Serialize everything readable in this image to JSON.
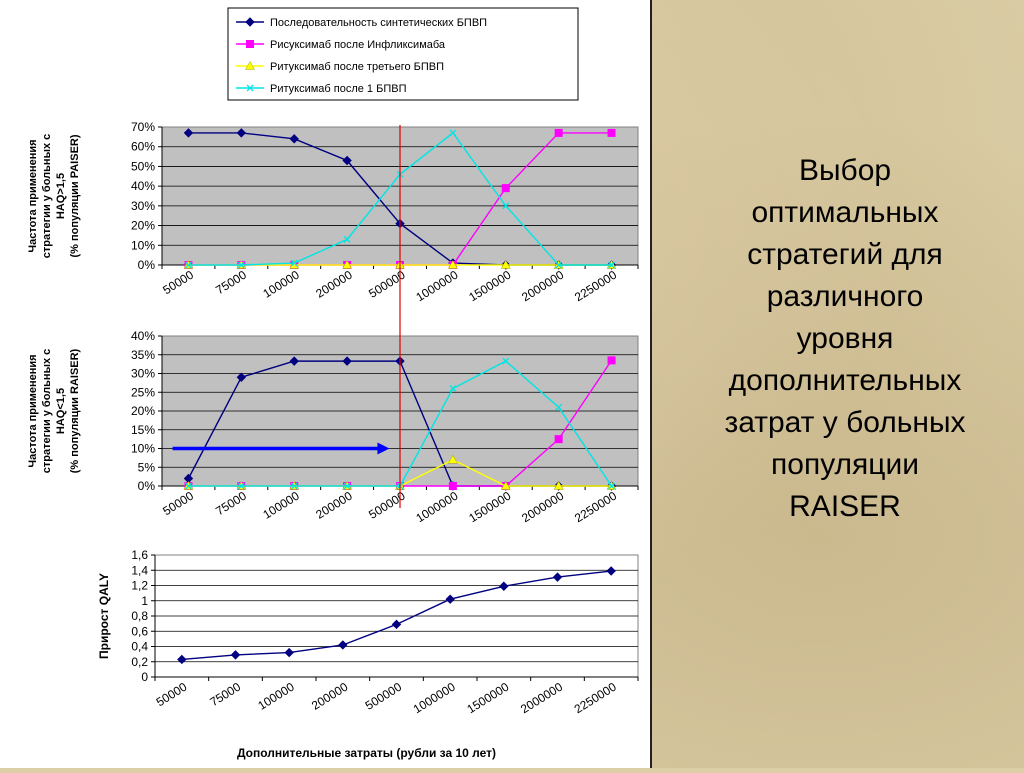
{
  "slide": {
    "title_lines": [
      "Выбор",
      "оптимальных",
      "стратегий для",
      "различного",
      "уровня",
      "дополнительных",
      "затрат у больных",
      "популяции",
      "RAISER"
    ]
  },
  "legend": [
    {
      "label": "Последовательность синтетических БПВП",
      "color": "#000080",
      "marker": "diamond"
    },
    {
      "label": "Рисуксимаб после Инфликсимаба",
      "color": "#ff00ff",
      "marker": "square"
    },
    {
      "label": "Ритуксимаб после третьего БПВП",
      "color": "#ffff00",
      "marker": "triangle"
    },
    {
      "label": "Ритуксимаб после 1 БПВП",
      "color": "#00e5e5",
      "marker": "x"
    }
  ],
  "chart_data": [
    {
      "type": "line",
      "categories": [
        "50000",
        "75000",
        "100000",
        "200000",
        "500000",
        "1000000",
        "1500000",
        "2000000",
        "2250000"
      ],
      "ylabel_lines": [
        "Частота применения",
        "стратегии  у больных с",
        "HAQ>1,5",
        "(% популяции PAISER)"
      ],
      "ylim": [
        0,
        70
      ],
      "yticks": [
        "0%",
        "10%",
        "20%",
        "30%",
        "40%",
        "50%",
        "60%",
        "70%"
      ],
      "grid": true,
      "background": "#c0c0c0",
      "threshold_x_index": 4.0,
      "series": [
        {
          "name": "Последовательность синтетических БПВП",
          "color": "#000080",
          "marker": "diamond",
          "values": [
            67,
            67,
            64,
            53,
            21,
            1,
            0,
            0,
            0
          ]
        },
        {
          "name": "Рисуксимаб после Инфликсимаба",
          "color": "#ff00ff",
          "marker": "square",
          "values": [
            0,
            0,
            0,
            0,
            0,
            0,
            39,
            67,
            67
          ]
        },
        {
          "name": "Ритуксимаб после третьего БПВП",
          "color": "#ffff00",
          "marker": "triangle",
          "values": [
            0,
            0,
            0,
            0,
            0,
            0,
            0,
            0,
            0
          ]
        },
        {
          "name": "Ритуксимаб после 1 БПВП",
          "color": "#00e5e5",
          "marker": "x",
          "values": [
            0,
            0,
            1,
            13,
            46,
            67,
            30,
            0,
            0
          ]
        }
      ]
    },
    {
      "type": "line",
      "categories": [
        "50000",
        "75000",
        "100000",
        "200000",
        "500000",
        "1000000",
        "1500000",
        "2000000",
        "2250000"
      ],
      "ylabel_lines": [
        "Частота применения",
        "стратегии  у больных с",
        "HAQ<1,5",
        "(% популяции RAISER)"
      ],
      "ylim": [
        0,
        40
      ],
      "yticks": [
        "0%",
        "5%",
        "10%",
        "15%",
        "20%",
        "25%",
        "30%",
        "35%",
        "40%"
      ],
      "grid": true,
      "background": "#c0c0c0",
      "threshold_x_index": 4.0,
      "arrow": {
        "from_index": -0.3,
        "to_index": 3.8,
        "value": 10,
        "color": "#0000ff"
      },
      "series": [
        {
          "name": "Последовательность синтетических БПВП",
          "color": "#000080",
          "marker": "diamond",
          "values": [
            2,
            29,
            33.3,
            33.3,
            33.3,
            0,
            0,
            0,
            0
          ]
        },
        {
          "name": "Рисуксимаб после Инфликсимаба",
          "color": "#ff00ff",
          "marker": "square",
          "values": [
            0,
            0,
            0,
            0,
            0,
            0,
            0,
            12.5,
            33.5
          ]
        },
        {
          "name": "Ритуксимаб после третьего БПВП",
          "color": "#ffff00",
          "marker": "triangle",
          "values": [
            0,
            0,
            0,
            0,
            0,
            7,
            0,
            0,
            0
          ]
        },
        {
          "name": "Ритуксимаб после 1 БПВП",
          "color": "#00e5e5",
          "marker": "x",
          "values": [
            0,
            0,
            0,
            0,
            0,
            26,
            33.3,
            21,
            0
          ]
        }
      ]
    },
    {
      "type": "line",
      "categories": [
        "50000",
        "75000",
        "100000",
        "200000",
        "500000",
        "1000000",
        "1500000",
        "2000000",
        "2250000"
      ],
      "ylabel": "Прирост QALY",
      "xlabel": "Дополнительные затраты (рубли за 10 лет)",
      "ylim": [
        0,
        1.6
      ],
      "yticks": [
        "0",
        "0,2",
        "0,4",
        "0,6",
        "0,8",
        "1",
        "1,2",
        "1,4",
        "1,6"
      ],
      "grid": true,
      "background": "#ffffff",
      "series": [
        {
          "color": "#000080",
          "marker": "diamond",
          "values": [
            0.23,
            0.29,
            0.32,
            0.42,
            0.69,
            1.02,
            1.19,
            1.31,
            1.39
          ]
        }
      ]
    }
  ]
}
